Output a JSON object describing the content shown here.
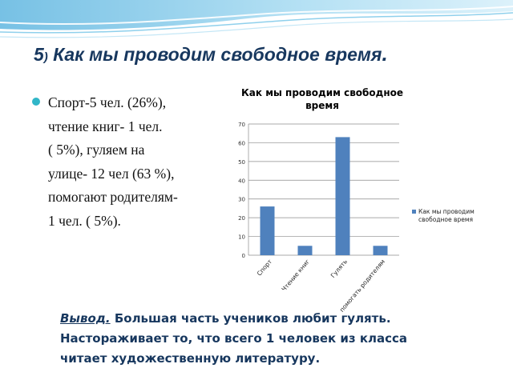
{
  "slide": {
    "title_number": "5",
    "title_paren": ")",
    "title_text": " Как мы проводим свободное время",
    "title_dot": "."
  },
  "bullet": {
    "lines": [
      "Спорт-5 чел. (26%),",
      "чтение книг- 1 чел.",
      "( 5%), гуляем на",
      "улице- 12 чел (63 %),",
      "помогают родителям-",
      "1 чел. ( 5%)."
    ]
  },
  "chart_data": {
    "type": "bar",
    "title_lines": [
      "Как мы проводим свободное",
      "время"
    ],
    "categories": [
      "Спорт",
      "Чтение книг",
      "Гулять",
      "помогать родителям"
    ],
    "series": [
      {
        "name_lines": [
          "Как мы проводим",
          "свободное время"
        ],
        "values": [
          26,
          5,
          63,
          5
        ],
        "color": "#4f81bd"
      }
    ],
    "yticks": [
      "0",
      "10",
      "20",
      "30",
      "40",
      "50",
      "60",
      "70"
    ],
    "ylim": [
      0,
      70
    ],
    "grid": true,
    "legend": "right"
  },
  "conclusion": {
    "label": "Вывод.",
    "line1": " Большая часть учеников любит гулять.",
    "line2": "Настораживает то, что всего 1 человек из класса",
    "line3": "читает художественную литературу."
  }
}
